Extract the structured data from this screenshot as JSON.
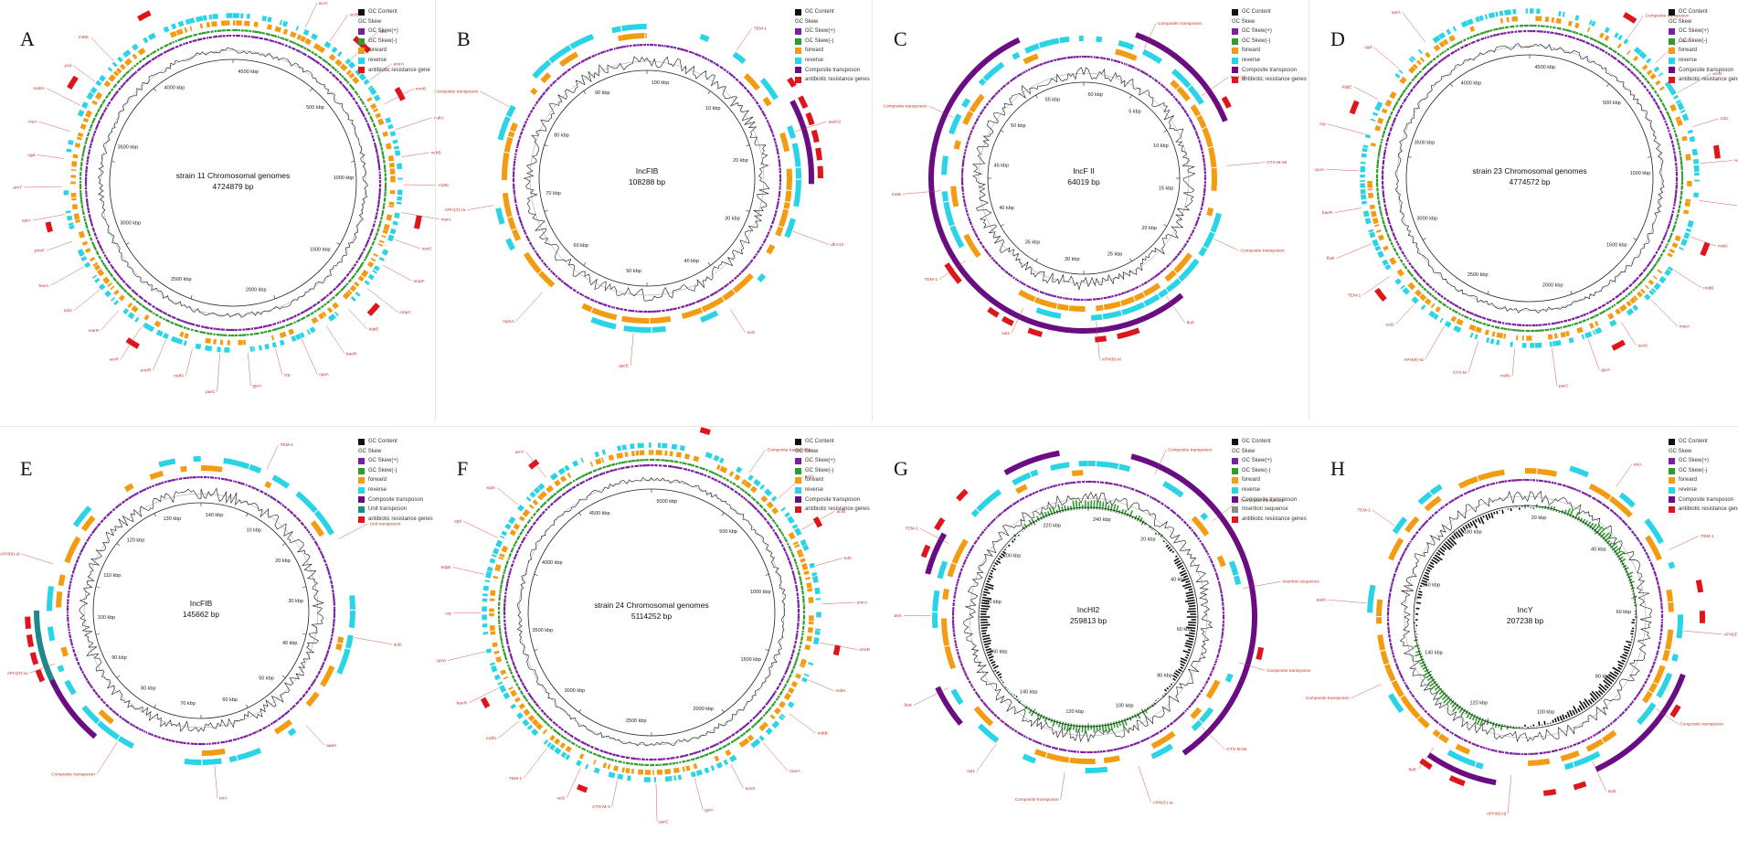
{
  "colors": {
    "gc_content": "#111111",
    "gc_skew_plus": "#7b1fa2",
    "gc_skew_minus": "#2e9d2e",
    "forward": "#f39c12",
    "reverse": "#29d4e6",
    "composite": "#6a0d83",
    "unit": "#1b8a8a",
    "insertion": "#8c8c8c",
    "resistance": "#e0151b",
    "annotation": "#c0392b"
  },
  "panels": [
    {
      "letter": "A",
      "title": "strain 11 Chromosomal genomes",
      "size": "4724879 bp",
      "ticks": [
        "4500 kbp",
        "500 kbp",
        "1000 kbp",
        "1500 kbp",
        "2000 kbp",
        "2500 kbp",
        "3000 kbp",
        "3500 kbp",
        "4000 kbp"
      ],
      "legend": [
        {
          "label": "GC Content",
          "color": "gc_content"
        },
        {
          "label": "GC Skew",
          "color": ""
        },
        {
          "label": "GC Skew(+)",
          "color": "gc_skew_plus"
        },
        {
          "label": "GC Skew(-)",
          "color": "gc_skew_minus"
        },
        {
          "label": "forward",
          "color": "forward"
        },
        {
          "label": "reverse",
          "color": "reverse"
        },
        {
          "label": "antibiotic resistance gene",
          "color": "resistance"
        }
      ],
      "tracks": [
        "reverse",
        "forward",
        "gc_skew_minus",
        "gc_skew_plus"
      ],
      "big_arcs": [],
      "res_marks": [],
      "annotations": [
        "acrA",
        "acrB",
        "tolC",
        "emrA",
        "emrB",
        "mdtA",
        "mdtB",
        "mdtC",
        "marA",
        "soxS",
        "ompF",
        "ompC",
        "kdpE",
        "baeR",
        "cpxA",
        "crp",
        "gyrA",
        "parC",
        "mdfA",
        "emrR",
        "acrR",
        "marR",
        "sdiA",
        "bacA",
        "pmrF",
        "eptA",
        "arnT",
        "ugd",
        "rosA",
        "msbA",
        "yojI",
        "mdtK"
      ]
    },
    {
      "letter": "B",
      "title": "IncFIB",
      "size": "108288 bp",
      "ticks": [
        "100 kbp",
        "10 kbp",
        "20 kbp",
        "30 kbp",
        "40 kbp",
        "50 kbp",
        "60 kbp",
        "70 kbp",
        "80 kbp",
        "90 kbp"
      ],
      "legend": [
        {
          "label": "GC Content",
          "color": "gc_content"
        },
        {
          "label": "GC Skew",
          "color": ""
        },
        {
          "label": "GC Skew(+)",
          "color": "gc_skew_plus"
        },
        {
          "label": "GC Skew(-)",
          "color": "gc_skew_minus"
        },
        {
          "label": "forward",
          "color": "forward"
        },
        {
          "label": "reverse",
          "color": "reverse"
        },
        {
          "label": "Composite transposon",
          "color": "composite"
        },
        {
          "label": "antibiotic resistance genes",
          "color": "resistance"
        }
      ],
      "tracks": [
        "reverse",
        "forward",
        "gc_skew_plus"
      ],
      "big_arcs": [],
      "res_marks": [],
      "annotations": [
        "TEM-1",
        "aadA2",
        "dfrA12",
        "sul1",
        "qacE",
        "mphA",
        "APH(3')-Ia",
        "Composite transposon"
      ]
    },
    {
      "letter": "C",
      "title": "IncF II",
      "size": "64019 bp",
      "ticks": [
        "60 kbp",
        "5 kbp",
        "10 kbp",
        "15 kbp",
        "20 kbp",
        "25 kbp",
        "30 kbp",
        "35 kbp",
        "40 kbp",
        "45 kbp",
        "50 kbp",
        "55 kbp"
      ],
      "legend": [
        {
          "label": "GC Content",
          "color": "gc_content"
        },
        {
          "label": "GC Skew",
          "color": ""
        },
        {
          "label": "GC Skew(+)",
          "color": "gc_skew_plus"
        },
        {
          "label": "GC Skew(-)",
          "color": "gc_skew_minus"
        },
        {
          "label": "forward",
          "color": "forward"
        },
        {
          "label": "reverse",
          "color": "reverse"
        },
        {
          "label": "Composite transposon",
          "color": "composite"
        },
        {
          "label": "antibiotic resistance genes",
          "color": "resistance"
        }
      ],
      "tracks": [
        "reverse",
        "forward",
        "gc_skew_plus"
      ],
      "big_arcs": [],
      "res_marks": [],
      "annotations": [
        "Composite transposon",
        "TEM-1B",
        "CTX-M-55",
        "Composite transposon",
        "floR",
        "APH(6)-Id",
        "sul2",
        "TEM-1",
        "rmtB",
        "Composite transposon"
      ]
    },
    {
      "letter": "D",
      "title": "strain 23 Chromosomal genomes",
      "size": "4774572 bp",
      "ticks": [
        "4500 kbp",
        "500 kbp",
        "1000 kbp",
        "1500 kbp",
        "2000 kbp",
        "2500 kbp",
        "3000 kbp",
        "3500 kbp",
        "4000 kbp"
      ],
      "legend": [
        {
          "label": "GC Content",
          "color": "gc_content"
        },
        {
          "label": "GC Skew",
          "color": ""
        },
        {
          "label": "GC Skew(+)",
          "color": "gc_skew_plus"
        },
        {
          "label": "GC Skew(-)",
          "color": "gc_skew_minus"
        },
        {
          "label": "forward",
          "color": "forward"
        },
        {
          "label": "reverse",
          "color": "reverse"
        },
        {
          "label": "Composite transposon",
          "color": "composite"
        },
        {
          "label": "antibiotic resistance genes",
          "color": "resistance"
        }
      ],
      "tracks": [
        "reverse",
        "forward",
        "gc_skew_minus",
        "gc_skew_plus"
      ],
      "big_arcs": [],
      "res_marks": [],
      "annotations": [
        "Composite transposon",
        "acrA",
        "acrB",
        "tolC",
        "emrA",
        "emrB",
        "mdtA",
        "mdtB",
        "marA",
        "soxS",
        "gyrA",
        "parC",
        "mdfA",
        "CTX-M",
        "APH(6)-Id",
        "sul2",
        "TEM-1",
        "floR",
        "baeR",
        "cpxA",
        "crp",
        "kdpE",
        "ugd",
        "eptA"
      ]
    },
    {
      "letter": "E",
      "title": "IncFIB",
      "size": "145662 bp",
      "ticks": [
        "140 kbp",
        "10 kbp",
        "20 kbp",
        "30 kbp",
        "40 kbp",
        "50 kbp",
        "60 kbp",
        "70 kbp",
        "80 kbp",
        "90 kbp",
        "100 kbp",
        "110 kbp",
        "120 kbp",
        "130 kbp"
      ],
      "legend": [
        {
          "label": "GC Content",
          "color": "gc_content"
        },
        {
          "label": "GC Skew",
          "color": ""
        },
        {
          "label": "GC Skew(+)",
          "color": "gc_skew_plus"
        },
        {
          "label": "GC Skew(-)",
          "color": "gc_skew_minus"
        },
        {
          "label": "forward",
          "color": "forward"
        },
        {
          "label": "reverse",
          "color": "reverse"
        },
        {
          "label": "Composite transposon",
          "color": "composite"
        },
        {
          "label": "Unit transposon",
          "color": "unit"
        },
        {
          "label": "antibiotic resistance genes",
          "color": "resistance"
        }
      ],
      "tracks": [
        "reverse",
        "forward",
        "gc_skew_plus"
      ],
      "big_arcs": [],
      "res_marks": [],
      "annotations": [
        "TEM-1",
        "Unit transposon",
        "sul2",
        "aadA",
        "tetA",
        "Composite transposon",
        "APH(3')-Ia",
        "APH(6)-Id"
      ]
    },
    {
      "letter": "F",
      "title": "strain 24 Chromosomal genomes",
      "size": "5114252 bp",
      "ticks": [
        "5000 kbp",
        "500 kbp",
        "1000 kbp",
        "1500 kbp",
        "2000 kbp",
        "2500 kbp",
        "3000 kbp",
        "3500 kbp",
        "4000 kbp",
        "4500 kbp"
      ],
      "legend": [
        {
          "label": "GC Content",
          "color": "gc_content"
        },
        {
          "label": "GC Skew",
          "color": ""
        },
        {
          "label": "GC Skew(+)",
          "color": "gc_skew_plus"
        },
        {
          "label": "GC Skew(-)",
          "color": "gc_skew_minus"
        },
        {
          "label": "forward",
          "color": "forward"
        },
        {
          "label": "reverse",
          "color": "reverse"
        },
        {
          "label": "Composite transposon",
          "color": "composite"
        },
        {
          "label": "antibiotic resistance genes",
          "color": "resistance"
        }
      ],
      "tracks": [
        "reverse",
        "forward",
        "gc_skew_minus",
        "gc_skew_plus"
      ],
      "big_arcs": [],
      "res_marks": [],
      "annotations": [
        "Composite transposon",
        "acrA",
        "acrB",
        "tolC",
        "emrA",
        "emrB",
        "mdtA",
        "mdtB",
        "marA",
        "soxS",
        "gyrA",
        "parC",
        "CTX-M-3",
        "sul2",
        "TEM-1",
        "mdfA",
        "baeR",
        "cpxA",
        "crp",
        "kdpE",
        "ugd",
        "eptA",
        "arnT"
      ]
    },
    {
      "letter": "G",
      "title": "IncHI2",
      "size": "259813 bp",
      "ticks": [
        "240 kbp",
        "20 kbp",
        "40 kbp",
        "60 kbp",
        "80 kbp",
        "100 kbp",
        "120 kbp",
        "140 kbp",
        "160 kbp",
        "180 kbp",
        "200 kbp",
        "220 kbp"
      ],
      "legend": [
        {
          "label": "GC Content",
          "color": "gc_content"
        },
        {
          "label": "GC Skew",
          "color": ""
        },
        {
          "label": "GC Skew(+)",
          "color": "gc_skew_plus"
        },
        {
          "label": "GC Skew(-)",
          "color": "gc_skew_minus"
        },
        {
          "label": "forward",
          "color": "forward"
        },
        {
          "label": "reverse",
          "color": "reverse"
        },
        {
          "label": "Composite transposon",
          "color": "composite"
        },
        {
          "label": "Insertion sequence",
          "color": "insertion"
        },
        {
          "label": "antibiotic resistance genes",
          "color": "resistance"
        }
      ],
      "tracks": [
        "reverse",
        "forward",
        "gc_skew_plus"
      ],
      "big_arcs": [],
      "res_marks": [],
      "annotations": [
        "Composite transposon",
        "Composite transposon",
        "Insertion sequence",
        "Composite transposon",
        "CTX-M-55",
        "APH(3')-Ia",
        "Composite transposon",
        "sul1",
        "floR",
        "tetA",
        "TEM-1"
      ]
    },
    {
      "letter": "H",
      "title": "IncY",
      "size": "207238 bp",
      "ticks": [
        "20 kbp",
        "40 kbp",
        "60 kbp",
        "80 kbp",
        "100 kbp",
        "120 kbp",
        "140 kbp",
        "160 kbp",
        "180 kbp"
      ],
      "legend": [
        {
          "label": "GC Content",
          "color": "gc_content"
        },
        {
          "label": "GC Skew",
          "color": ""
        },
        {
          "label": "GC Skew(+)",
          "color": "gc_skew_plus"
        },
        {
          "label": "GC Skew(-)",
          "color": "gc_skew_minus"
        },
        {
          "label": "forward",
          "color": "forward"
        },
        {
          "label": "reverse",
          "color": "reverse"
        },
        {
          "label": "Composite transposon",
          "color": "composite"
        },
        {
          "label": "antibiotic resistance genes",
          "color": "resistance"
        }
      ],
      "tracks": [
        "reverse",
        "forward",
        "gc_skew_plus"
      ],
      "big_arcs": [],
      "res_marks": [],
      "annotations": [
        "tetA",
        "TEM-1",
        "APH(3')-Ia",
        "Composite transposon",
        "sul2",
        "APH(6)-Id",
        "floR",
        "Composite transposon",
        "aadA",
        "TEM-1"
      ]
    }
  ]
}
